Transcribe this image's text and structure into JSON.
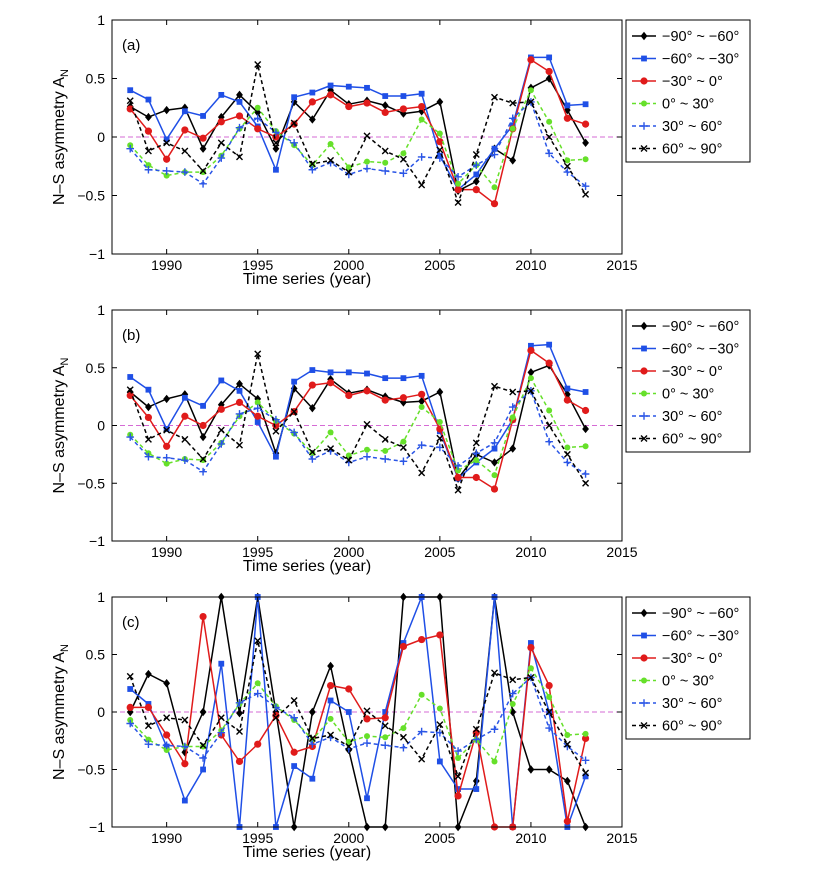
{
  "chart_data": [
    {
      "type": "line",
      "panel_label": "(a)",
      "xlabel": "Time series (year)",
      "ylabel": "N–S asymmetry A",
      "ylabel_sub": "N",
      "xlim": [
        1987,
        2015
      ],
      "ylim": [
        -1,
        1
      ],
      "xticks": [
        "1990",
        "1995",
        "2000",
        "2005",
        "2010",
        "2015"
      ],
      "yticks": [
        "−1",
        "−0.5",
        "0",
        "0.5",
        "1"
      ],
      "x": [
        1988,
        1989,
        1990,
        1991,
        1992,
        1993,
        1994,
        1995,
        1996,
        1997,
        1998,
        1999,
        2000,
        2001,
        2002,
        2003,
        2004,
        2005,
        2006,
        2007,
        2008,
        2009,
        2010,
        2011,
        2012,
        2013
      ],
      "series": [
        {
          "name": "−90° ~ −60°",
          "values": [
            0.26,
            0.17,
            0.23,
            0.25,
            -0.1,
            0.17,
            0.36,
            0.21,
            -0.1,
            0.3,
            0.15,
            0.4,
            0.28,
            0.31,
            0.27,
            0.2,
            0.22,
            0.3,
            -0.46,
            -0.38,
            -0.1,
            -0.2,
            0.42,
            0.5,
            0.23,
            -0.05
          ]
        },
        {
          "name": "−60° ~ −30°",
          "values": [
            0.4,
            0.32,
            -0.02,
            0.22,
            0.18,
            0.36,
            0.3,
            0.09,
            -0.28,
            0.34,
            0.38,
            0.44,
            0.43,
            0.42,
            0.35,
            0.35,
            0.37,
            -0.16,
            -0.45,
            -0.32,
            -0.1,
            0.1,
            0.68,
            0.68,
            0.27,
            0.28
          ]
        },
        {
          "name": "−30° ~ 0°",
          "values": [
            0.24,
            0.05,
            -0.19,
            0.06,
            -0.01,
            0.13,
            0.18,
            0.07,
            0.0,
            0.11,
            0.3,
            0.36,
            0.26,
            0.29,
            0.21,
            0.24,
            0.26,
            -0.04,
            -0.45,
            -0.45,
            -0.57,
            0.07,
            0.66,
            0.56,
            0.16,
            0.11
          ]
        },
        {
          "name": "0° ~ 30°",
          "values": [
            -0.07,
            -0.24,
            -0.33,
            -0.3,
            -0.3,
            -0.16,
            0.07,
            0.25,
            0.05,
            -0.07,
            -0.24,
            -0.06,
            -0.26,
            -0.21,
            -0.22,
            -0.14,
            0.15,
            0.03,
            -0.4,
            -0.24,
            -0.43,
            0.07,
            0.4,
            0.13,
            -0.2,
            -0.19
          ]
        },
        {
          "name": "30° ~ 60°",
          "values": [
            -0.1,
            -0.28,
            -0.29,
            -0.3,
            -0.4,
            -0.18,
            0.08,
            0.16,
            0.04,
            -0.05,
            -0.28,
            -0.22,
            -0.32,
            -0.27,
            -0.29,
            -0.31,
            -0.17,
            -0.18,
            -0.34,
            -0.24,
            -0.15,
            0.16,
            0.3,
            -0.14,
            -0.3,
            -0.42
          ]
        },
        {
          "name": "60° ~ 90°",
          "values": [
            0.31,
            -0.12,
            -0.05,
            -0.12,
            -0.29,
            -0.05,
            -0.17,
            0.62,
            -0.05,
            0.12,
            -0.23,
            -0.2,
            -0.3,
            0.01,
            -0.12,
            -0.19,
            -0.41,
            -0.11,
            -0.56,
            -0.15,
            0.34,
            0.29,
            0.3,
            0.0,
            -0.25,
            -0.49
          ]
        }
      ]
    },
    {
      "type": "line",
      "panel_label": "(b)",
      "xlabel": "Time series (year)",
      "ylabel": "N–S asymmetry A",
      "ylabel_sub": "N",
      "xlim": [
        1987,
        2015
      ],
      "ylim": [
        -1,
        1
      ],
      "xticks": [
        "1990",
        "1995",
        "2000",
        "2005",
        "2010",
        "2015"
      ],
      "yticks": [
        "−1",
        "−0.5",
        "0",
        "0.5",
        "1"
      ],
      "x": [
        1988,
        1989,
        1990,
        1991,
        1992,
        1993,
        1994,
        1995,
        1996,
        1997,
        1998,
        1999,
        2000,
        2001,
        2002,
        2003,
        2004,
        2005,
        2006,
        2007,
        2008,
        2009,
        2010,
        2011,
        2012,
        2013
      ],
      "series": [
        {
          "name": "−90° ~ −60°",
          "values": [
            0.29,
            0.16,
            0.23,
            0.27,
            -0.1,
            0.18,
            0.36,
            0.23,
            -0.24,
            0.32,
            0.15,
            0.4,
            0.28,
            0.31,
            0.25,
            0.2,
            0.21,
            0.29,
            -0.46,
            -0.25,
            -0.32,
            -0.2,
            0.46,
            0.52,
            0.27,
            -0.03
          ]
        },
        {
          "name": "−60° ~ −30°",
          "values": [
            0.42,
            0.31,
            -0.03,
            0.24,
            0.17,
            0.39,
            0.3,
            0.03,
            -0.27,
            0.38,
            0.48,
            0.46,
            0.46,
            0.45,
            0.41,
            0.41,
            0.43,
            -0.05,
            -0.46,
            -0.32,
            -0.2,
            0.05,
            0.69,
            0.7,
            0.32,
            0.29
          ]
        },
        {
          "name": "−30° ~ 0°",
          "values": [
            0.26,
            0.07,
            -0.18,
            0.08,
            0.0,
            0.14,
            0.2,
            0.08,
            0.0,
            0.12,
            0.35,
            0.37,
            0.26,
            0.3,
            0.22,
            0.24,
            0.27,
            -0.03,
            -0.45,
            -0.45,
            -0.55,
            0.05,
            0.65,
            0.54,
            0.22,
            0.13
          ]
        },
        {
          "name": "0° ~ 30°",
          "values": [
            -0.08,
            -0.24,
            -0.33,
            -0.29,
            -0.3,
            -0.15,
            0.08,
            0.2,
            0.04,
            -0.07,
            -0.24,
            -0.06,
            -0.26,
            -0.21,
            -0.22,
            -0.14,
            0.16,
            0.03,
            -0.39,
            -0.3,
            -0.43,
            0.07,
            0.41,
            0.13,
            -0.19,
            -0.18
          ]
        },
        {
          "name": "30° ~ 60°",
          "values": [
            -0.1,
            -0.27,
            -0.28,
            -0.3,
            -0.4,
            -0.16,
            0.1,
            0.15,
            0.05,
            -0.06,
            -0.29,
            -0.22,
            -0.32,
            -0.27,
            -0.29,
            -0.31,
            -0.17,
            -0.19,
            -0.35,
            -0.24,
            -0.15,
            0.16,
            0.3,
            -0.14,
            -0.32,
            -0.42
          ]
        },
        {
          "name": "60° ~ 90°",
          "values": [
            0.31,
            -0.12,
            -0.04,
            -0.12,
            -0.29,
            -0.04,
            -0.17,
            0.62,
            -0.05,
            0.12,
            -0.23,
            -0.2,
            -0.3,
            0.01,
            -0.12,
            -0.19,
            -0.41,
            -0.11,
            -0.56,
            -0.15,
            0.34,
            0.29,
            0.3,
            0.0,
            -0.25,
            -0.5
          ]
        }
      ]
    },
    {
      "type": "line",
      "panel_label": "(c)",
      "xlabel": "Time series (year)",
      "ylabel": "N–S asymmetry A",
      "ylabel_sub": "N",
      "xlim": [
        1987,
        2015
      ],
      "ylim": [
        -1,
        1
      ],
      "xticks": [
        "1990",
        "1995",
        "2000",
        "2005",
        "2010",
        "2015"
      ],
      "yticks": [
        "−1",
        "−0.5",
        "0",
        "0.5",
        "1"
      ],
      "x": [
        1988,
        1989,
        1990,
        1991,
        1992,
        1993,
        1994,
        1995,
        1996,
        1997,
        1998,
        1999,
        2000,
        2001,
        2002,
        2003,
        2004,
        2005,
        2006,
        2007,
        2008,
        2009,
        2010,
        2011,
        2012,
        2013
      ],
      "series": [
        {
          "name": "−90° ~ −60°",
          "values": [
            0.0,
            0.33,
            0.25,
            -0.35,
            0.0,
            1.0,
            -0.01,
            1.0,
            0.0,
            -1.0,
            0.0,
            0.4,
            -0.33,
            -1.0,
            -1.0,
            1.0,
            1.0,
            1.0,
            -1.0,
            -0.6,
            1.0,
            0.0,
            -0.5,
            -0.5,
            -0.6,
            -1.0
          ]
        },
        {
          "name": "−60° ~ −30°",
          "values": [
            0.2,
            0.07,
            -0.3,
            -0.77,
            -0.5,
            0.42,
            -1.0,
            1.0,
            -1.0,
            -0.47,
            -0.58,
            0.1,
            0.0,
            -0.75,
            0.0,
            0.6,
            1.0,
            -0.43,
            -0.67,
            -0.67,
            1.0,
            -1.0,
            0.6,
            0.0,
            -1.0,
            -0.56
          ]
        },
        {
          "name": "−30° ~ 0°",
          "values": [
            0.04,
            0.04,
            -0.2,
            -0.45,
            0.83,
            -0.2,
            -0.43,
            -0.28,
            -0.03,
            -0.35,
            -0.3,
            0.23,
            0.2,
            -0.06,
            -0.05,
            0.57,
            0.63,
            0.67,
            -0.73,
            -0.18,
            -1.0,
            -1.0,
            0.56,
            0.23,
            -0.95,
            -0.23
          ]
        },
        {
          "name": "0° ~ 30°",
          "values": [
            -0.07,
            -0.24,
            -0.33,
            -0.3,
            -0.3,
            -0.16,
            0.07,
            0.25,
            0.05,
            -0.07,
            -0.24,
            -0.06,
            -0.26,
            -0.21,
            -0.22,
            -0.14,
            0.15,
            0.03,
            -0.4,
            -0.24,
            -0.43,
            0.07,
            0.38,
            0.13,
            -0.2,
            -0.19
          ]
        },
        {
          "name": "30° ~ 60°",
          "values": [
            -0.1,
            -0.28,
            -0.29,
            -0.3,
            -0.4,
            -0.18,
            0.08,
            0.16,
            0.04,
            -0.05,
            -0.28,
            -0.22,
            -0.32,
            -0.27,
            -0.29,
            -0.31,
            -0.17,
            -0.18,
            -0.34,
            -0.24,
            -0.15,
            0.16,
            0.3,
            -0.14,
            -0.3,
            -0.42
          ]
        },
        {
          "name": "60° ~ 90°",
          "values": [
            0.31,
            -0.12,
            -0.05,
            -0.07,
            -0.29,
            -0.05,
            -0.17,
            0.62,
            -0.05,
            0.1,
            -0.23,
            -0.2,
            -0.3,
            0.01,
            -0.12,
            -0.22,
            -0.41,
            -0.11,
            -0.56,
            -0.15,
            0.34,
            0.28,
            0.3,
            0.0,
            -0.28,
            -0.53
          ]
        }
      ]
    }
  ],
  "series_styles": [
    {
      "color": "#000000",
      "marker": "diamond",
      "dash": ""
    },
    {
      "color": "#1f4fe6",
      "marker": "square",
      "dash": ""
    },
    {
      "color": "#e01b1b",
      "marker": "circle",
      "dash": ""
    },
    {
      "color": "#66e02a",
      "marker": "dot",
      "dash": "4,3"
    },
    {
      "color": "#2a55e6",
      "marker": "plus",
      "dash": "4,3"
    },
    {
      "color": "#000000",
      "marker": "cross",
      "dash": "4,3"
    }
  ],
  "zero_line_color": "#d56bd5"
}
